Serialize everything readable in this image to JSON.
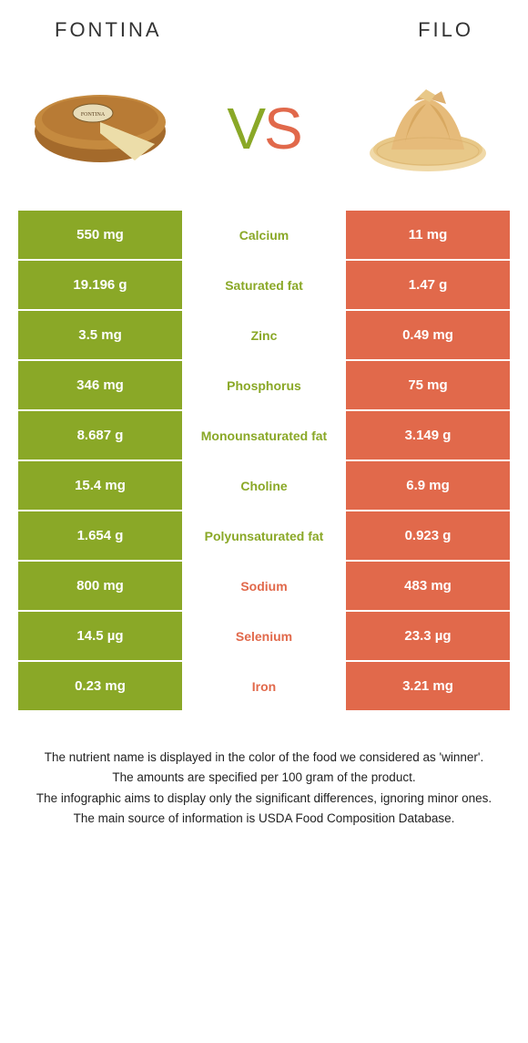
{
  "colors": {
    "green": "#8aa827",
    "orange": "#e1694b",
    "mid_bg": "#ffffff"
  },
  "header": {
    "left": "Fontina",
    "right": "Filo"
  },
  "vs": {
    "v": "V",
    "s": "S"
  },
  "rows": [
    {
      "left": "550 mg",
      "label": "Calcium",
      "right": "11 mg",
      "winner": "left"
    },
    {
      "left": "19.196 g",
      "label": "Saturated fat",
      "right": "1.47 g",
      "winner": "left"
    },
    {
      "left": "3.5 mg",
      "label": "Zinc",
      "right": "0.49 mg",
      "winner": "left"
    },
    {
      "left": "346 mg",
      "label": "Phosphorus",
      "right": "75 mg",
      "winner": "left"
    },
    {
      "left": "8.687 g",
      "label": "Monounsaturated fat",
      "right": "3.149 g",
      "winner": "left"
    },
    {
      "left": "15.4 mg",
      "label": "Choline",
      "right": "6.9 mg",
      "winner": "left"
    },
    {
      "left": "1.654 g",
      "label": "Polyunsaturated fat",
      "right": "0.923 g",
      "winner": "left"
    },
    {
      "left": "800 mg",
      "label": "Sodium",
      "right": "483 mg",
      "winner": "right"
    },
    {
      "left": "14.5 µg",
      "label": "Selenium",
      "right": "23.3 µg",
      "winner": "right"
    },
    {
      "left": "0.23 mg",
      "label": "Iron",
      "right": "3.21 mg",
      "winner": "right"
    }
  ],
  "footer": {
    "line1": "The nutrient name is displayed in the color of the food we considered as 'winner'.",
    "line2": "The amounts are specified per 100 gram of the product.",
    "line3": "The infographic aims to display only the significant differences, ignoring minor ones.",
    "line4": "The main source of information is USDA Food Composition Database."
  }
}
